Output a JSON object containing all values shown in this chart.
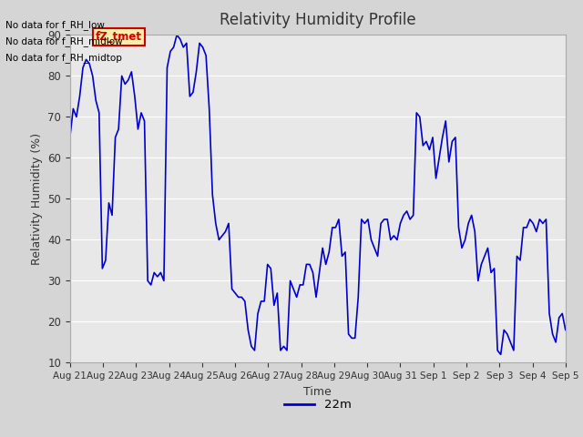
{
  "title": "Relativity Humidity Profile",
  "xlabel": "Time",
  "ylabel": "Relativity Humidity (%)",
  "ylim": [
    10,
    90
  ],
  "yticks": [
    10,
    20,
    30,
    40,
    50,
    60,
    70,
    80,
    90
  ],
  "line_color": "#0000cc",
  "line_width": 1.2,
  "legend_label": "22m",
  "legend_color": "#0000cc",
  "fig_bg_color": "#d5d5d5",
  "plot_bg": "#e8e8e8",
  "grid_color": "#ffffff",
  "annotations": [
    "No data for f_RH_low",
    "No data for f_RH_midlow",
    "No data for f_RH_midtop"
  ],
  "tooltip_text": "fZ_tmet",
  "tooltip_bg": "#ffeeaa",
  "tooltip_border": "#cc0000",
  "x_tick_labels": [
    "Aug 21",
    "Aug 22",
    "Aug 23",
    "Aug 24",
    "Aug 25",
    "Aug 26",
    "Aug 27",
    "Aug 28",
    "Aug 29",
    "Aug 30",
    "Aug 31",
    "Sep 1",
    "Sep 2",
    "Sep 3",
    "Sep 4",
    "Sep 5"
  ],
  "data_y": [
    65,
    72,
    70,
    75,
    82,
    84,
    83,
    80,
    74,
    71,
    33,
    35,
    49,
    46,
    65,
    67,
    80,
    78,
    79,
    81,
    75,
    67,
    71,
    69,
    30,
    29,
    32,
    31,
    32,
    30,
    82,
    86,
    87,
    90,
    89,
    87,
    88,
    75,
    76,
    81,
    88,
    87,
    85,
    72,
    51,
    44,
    40,
    41,
    42,
    44,
    28,
    27,
    26,
    26,
    25,
    18,
    14,
    13,
    22,
    25,
    25,
    34,
    33,
    24,
    27,
    13,
    14,
    13,
    30,
    28,
    26,
    29,
    29,
    34,
    34,
    32,
    26,
    32,
    38,
    34,
    37,
    43,
    43,
    45,
    36,
    37,
    17,
    16,
    16,
    26,
    45,
    44,
    45,
    40,
    38,
    36,
    44,
    45,
    45,
    40,
    41,
    40,
    44,
    46,
    47,
    45,
    46,
    71,
    70,
    63,
    64,
    62,
    65,
    55,
    60,
    65,
    69,
    59,
    64,
    65,
    43,
    38,
    40,
    44,
    46,
    42,
    30,
    34,
    36,
    38,
    32,
    33,
    13,
    12,
    18,
    17,
    15,
    13,
    36,
    35,
    43,
    43,
    45,
    44,
    42,
    45,
    44,
    45,
    22,
    17,
    15,
    21,
    22,
    18
  ]
}
